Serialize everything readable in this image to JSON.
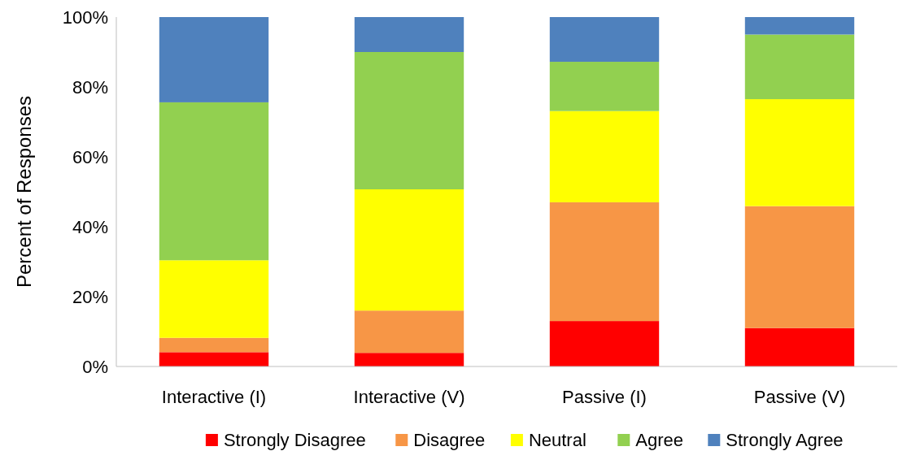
{
  "chart_data": {
    "type": "bar",
    "stacked": true,
    "ylabel": "Percent of Responses",
    "categories": [
      "Interactive (I)",
      "Interactive (V)",
      "Passive (I)",
      "Passive (V)"
    ],
    "series": [
      {
        "name": "Strongly Disagree",
        "color": "#ff0000",
        "values": [
          4.1,
          3.9,
          13.0,
          11.0
        ]
      },
      {
        "name": "Disagree",
        "color": "#f79646",
        "values": [
          4.1,
          12.1,
          34.0,
          34.9
        ]
      },
      {
        "name": "Neutral",
        "color": "#ffff00",
        "values": [
          22.2,
          34.7,
          26.1,
          30.6
        ]
      },
      {
        "name": "Agree",
        "color": "#92d050",
        "values": [
          45.2,
          39.3,
          14.1,
          18.5
        ]
      },
      {
        "name": "Strongly Agree",
        "color": "#4f81bd",
        "values": [
          24.4,
          10.0,
          12.8,
          5.0
        ]
      }
    ],
    "ylim": [
      0,
      100
    ],
    "yticks": [
      {
        "value": 0,
        "label": "0%"
      },
      {
        "value": 20,
        "label": "20%"
      },
      {
        "value": 40,
        "label": "40%"
      },
      {
        "value": 60,
        "label": "60%"
      },
      {
        "value": 80,
        "label": "80%"
      },
      {
        "value": 100,
        "label": "100%"
      }
    ],
    "grid": false,
    "legend": "bottom"
  }
}
